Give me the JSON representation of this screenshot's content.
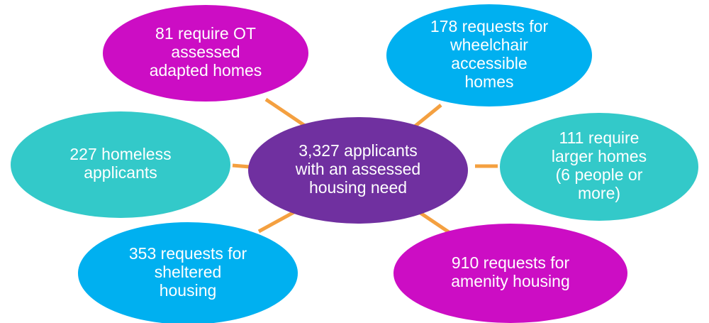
{
  "nodes": [
    {
      "lines": [
        "3,327 applicants",
        "with an assessed",
        "housing need"
      ]
    },
    {
      "lines": [
        "81 require OT",
        "assessed",
        "adapted homes"
      ]
    },
    {
      "lines": [
        "178 requests for",
        "wheelchair",
        "accessible",
        "homes"
      ]
    },
    {
      "lines": [
        "227 homeless",
        "applicants"
      ]
    },
    {
      "lines": [
        "111 require",
        "larger homes",
        "(6 people or",
        "more)"
      ]
    },
    {
      "lines": [
        "353 requests for",
        "sheltered",
        "housing"
      ]
    },
    {
      "lines": [
        "910 requests for",
        "amenity housing"
      ]
    }
  ]
}
